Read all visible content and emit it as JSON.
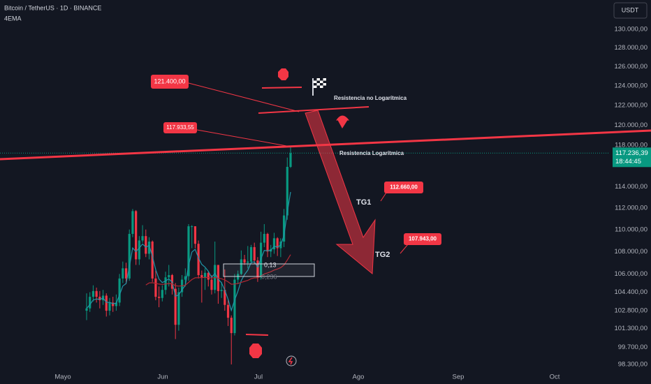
{
  "chart_data": {
    "type": "candlestick",
    "title": "Bitcoin / TetherUS · 1D · BINANCE",
    "subtitle": "4EMA",
    "currency": "USDT",
    "log_scale": true,
    "grid": false,
    "up_color": "#089981",
    "down_color": "#f23645",
    "ylim": [
      97840,
      133200
    ],
    "yticks": [
      {
        "value": 130000,
        "label": "130.000,00"
      },
      {
        "value": 128000,
        "label": "128.000,00"
      },
      {
        "value": 126000,
        "label": "126.000,00"
      },
      {
        "value": 124000,
        "label": "124.000,00"
      },
      {
        "value": 122000,
        "label": "122.000,00"
      },
      {
        "value": 120000,
        "label": "120.000,00"
      },
      {
        "value": 118000,
        "label": "118.000,00"
      },
      {
        "value": 114000,
        "label": "114.000,00"
      },
      {
        "value": 112000,
        "label": "112.000,00"
      },
      {
        "value": 110000,
        "label": "110.000,00"
      },
      {
        "value": 108000,
        "label": "108.000,00"
      },
      {
        "value": 106000,
        "label": "106.000,00"
      },
      {
        "value": 104400,
        "label": "104.400,00"
      },
      {
        "value": 102800,
        "label": "102.800,00"
      },
      {
        "value": 101300,
        "label": "101.300,00"
      },
      {
        "value": 99700,
        "label": "99.700,00"
      },
      {
        "value": 98300,
        "label": "98.300,00"
      }
    ],
    "months": [
      "Mayo",
      "Jun",
      "Jul",
      "Ago",
      "Sep",
      "Oct"
    ],
    "ohlc": [
      [
        102800,
        104300,
        102000,
        103000
      ],
      [
        103000,
        104400,
        102700,
        104000
      ],
      [
        104000,
        105000,
        103600,
        104500
      ],
      [
        104500,
        104800,
        103500,
        104000
      ],
      [
        104000,
        104500,
        103000,
        103700
      ],
      [
        103700,
        104600,
        103300,
        104100
      ],
      [
        104100,
        104300,
        102300,
        102800
      ],
      [
        102800,
        103900,
        102400,
        103500
      ],
      [
        103500,
        104000,
        102700,
        103200
      ],
      [
        103200,
        104200,
        102800,
        103500
      ],
      [
        103500,
        106000,
        103200,
        105600
      ],
      [
        105600,
        107100,
        105200,
        106500
      ],
      [
        106500,
        107000,
        105100,
        105600
      ],
      [
        105600,
        110000,
        105400,
        109600
      ],
      [
        109600,
        111900,
        109300,
        111700
      ],
      [
        111700,
        111800,
        106800,
        107300
      ],
      [
        107300,
        109400,
        106800,
        109000
      ],
      [
        109000,
        110400,
        108800,
        109400
      ],
      [
        109400,
        110000,
        107500,
        107800
      ],
      [
        107800,
        109300,
        107300,
        108900
      ],
      [
        108900,
        109000,
        105300,
        105600
      ],
      [
        105600,
        106300,
        103700,
        104000
      ],
      [
        104000,
        104900,
        103100,
        103900
      ],
      [
        103900,
        105000,
        103600,
        104600
      ],
      [
        104600,
        106200,
        104200,
        105700
      ],
      [
        105700,
        106800,
        104900,
        105900
      ],
      [
        105900,
        106000,
        104200,
        104700
      ],
      [
        104700,
        105200,
        100400,
        101600
      ],
      [
        101600,
        104800,
        101100,
        104400
      ],
      [
        104400,
        105900,
        104000,
        105500
      ],
      [
        105500,
        106500,
        104900,
        105800
      ],
      [
        105800,
        110500,
        105400,
        110300
      ],
      [
        110300,
        110400,
        108300,
        110300
      ],
      [
        110300,
        110300,
        108300,
        108700
      ],
      [
        108700,
        109000,
        105600,
        105900
      ],
      [
        105900,
        106300,
        103500,
        105700
      ],
      [
        105700,
        106500,
        104600,
        106100
      ],
      [
        106100,
        106200,
        104900,
        105500
      ],
      [
        105500,
        105900,
        104200,
        104600
      ],
      [
        104600,
        108900,
        104300,
        106800
      ],
      [
        106800,
        106800,
        103400,
        104500
      ],
      [
        104500,
        105300,
        103900,
        104600
      ],
      [
        104600,
        106400,
        102800,
        103300
      ],
      [
        103300,
        103800,
        101500,
        102200
      ],
      [
        102200,
        102400,
        98300,
        100900
      ],
      [
        100900,
        106000,
        100700,
        105500
      ],
      [
        105500,
        106300,
        105100,
        106000
      ],
      [
        106000,
        108100,
        105900,
        107300
      ],
      [
        107300,
        107700,
        106800,
        107000
      ],
      [
        107000,
        108500,
        106500,
        107100
      ],
      [
        107100,
        108600,
        106900,
        108400
      ],
      [
        108400,
        108800,
        106900,
        107200
      ],
      [
        107200,
        107500,
        105300,
        105700
      ],
      [
        105700,
        109800,
        105500,
        108800
      ],
      [
        108800,
        110500,
        108400,
        109600
      ],
      [
        109600,
        109700,
        107500,
        108000
      ],
      [
        108000,
        108600,
        107500,
        108200
      ],
      [
        108200,
        109700,
        107800,
        109200
      ],
      [
        109200,
        109300,
        107600,
        108300
      ],
      [
        108300,
        109200,
        107500,
        108900
      ],
      [
        108900,
        111900,
        108400,
        111300
      ],
      [
        111300,
        116800,
        110900,
        115900
      ],
      [
        115900,
        117933,
        115800,
        117236
      ]
    ],
    "last_price": {
      "value": 117236.39,
      "label": "117.236,39"
    },
    "countdown": "18:44:45",
    "annotations": [
      "121.400,00",
      "117.933,55",
      "112.660,00",
      "107.943,00",
      "Resistencia no Logarítmica",
      "Resistencia Logarítmica",
      "TG1",
      "TG2",
      "0,13",
      "0,236"
    ]
  }
}
